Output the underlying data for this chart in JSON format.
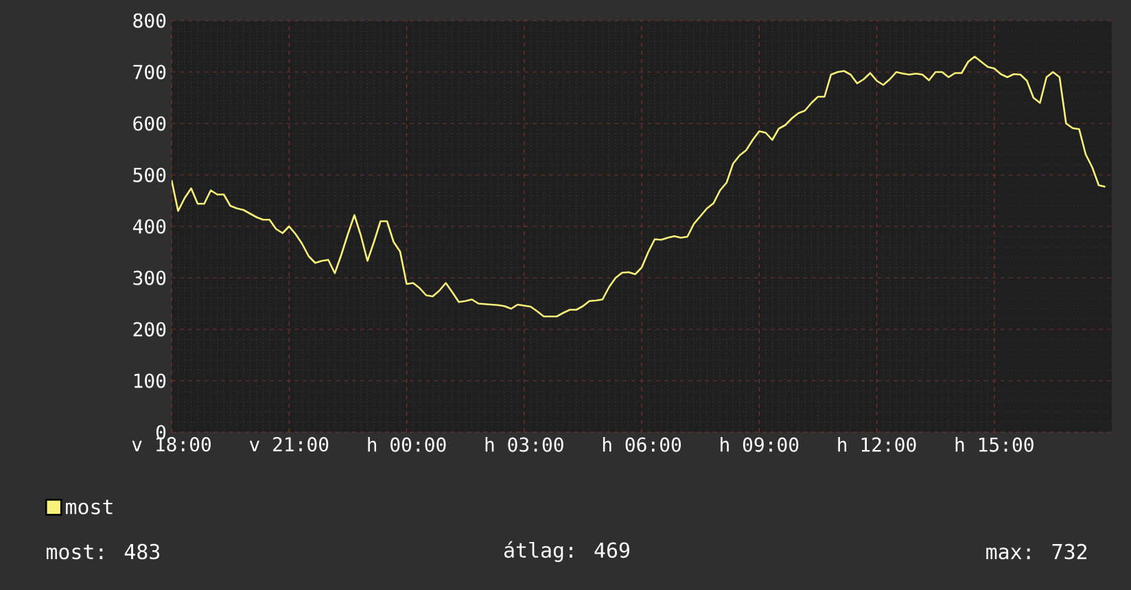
{
  "chart_data": {
    "type": "line",
    "categories": [
      "v 18:00",
      null,
      null,
      null,
      null,
      null,
      null,
      null,
      null,
      null,
      null,
      null,
      null,
      null,
      null,
      null,
      null,
      null,
      "v 21:00",
      null,
      null,
      null,
      null,
      null,
      null,
      null,
      null,
      null,
      null,
      null,
      null,
      null,
      null,
      null,
      null,
      null,
      "h 00:00",
      null,
      null,
      null,
      null,
      null,
      null,
      null,
      null,
      null,
      null,
      null,
      null,
      null,
      null,
      null,
      null,
      null,
      "h 03:00",
      null,
      null,
      null,
      null,
      null,
      null,
      null,
      null,
      null,
      null,
      null,
      null,
      null,
      null,
      null,
      null,
      null,
      "h 06:00",
      null,
      null,
      null,
      null,
      null,
      null,
      null,
      null,
      null,
      null,
      null,
      null,
      null,
      null,
      null,
      null,
      null,
      "h 09:00",
      null,
      null,
      null,
      null,
      null,
      null,
      null,
      null,
      null,
      null,
      null,
      null,
      null,
      null,
      null,
      null,
      null,
      "h 12:00",
      null,
      null,
      null,
      null,
      null,
      null,
      null,
      null,
      null,
      null,
      null,
      null,
      null,
      null,
      null,
      null,
      null,
      "h 15:00",
      null,
      null,
      null,
      null,
      null,
      null,
      null,
      null,
      null,
      null,
      null,
      null,
      null,
      null,
      null,
      null,
      null
    ],
    "series": [
      {
        "name": "most",
        "color": "#f8f27a",
        "values": [
          490,
          430,
          455,
          474,
          444,
          444,
          470,
          462,
          462,
          440,
          435,
          432,
          425,
          418,
          413,
          413,
          395,
          387,
          400,
          385,
          366,
          342,
          329,
          333,
          335,
          309,
          345,
          385,
          422,
          382,
          333,
          370,
          410,
          410,
          370,
          351,
          288,
          290,
          280,
          266,
          264,
          275,
          290,
          272,
          253,
          255,
          258,
          250,
          249,
          248,
          247,
          245,
          240,
          248,
          246,
          244,
          235,
          225,
          225,
          225,
          232,
          238,
          238,
          245,
          255,
          256,
          258,
          282,
          300,
          310,
          311,
          307,
          320,
          350,
          375,
          374,
          378,
          381,
          378,
          380,
          405,
          420,
          435,
          445,
          470,
          485,
          522,
          538,
          548,
          568,
          585,
          582,
          568,
          590,
          597,
          610,
          620,
          625,
          640,
          652,
          652,
          695,
          700,
          702,
          695,
          678,
          686,
          698,
          683,
          675,
          686,
          700,
          697,
          695,
          697,
          695,
          684,
          700,
          700,
          690,
          698,
          698,
          720,
          730,
          720,
          710,
          707,
          696,
          690,
          696,
          695,
          683,
          650,
          640,
          690,
          700,
          690,
          600,
          591,
          589,
          540,
          515,
          480,
          477
        ]
      }
    ],
    "ylim": [
      0,
      800
    ],
    "yticks": [
      0,
      100,
      200,
      300,
      400,
      500,
      600,
      700,
      800
    ],
    "grid": true,
    "legend": "bottom",
    "line_style": "solid",
    "annotations": [
      "most: 483",
      "átlag: 469",
      "max: 732"
    ]
  }
}
